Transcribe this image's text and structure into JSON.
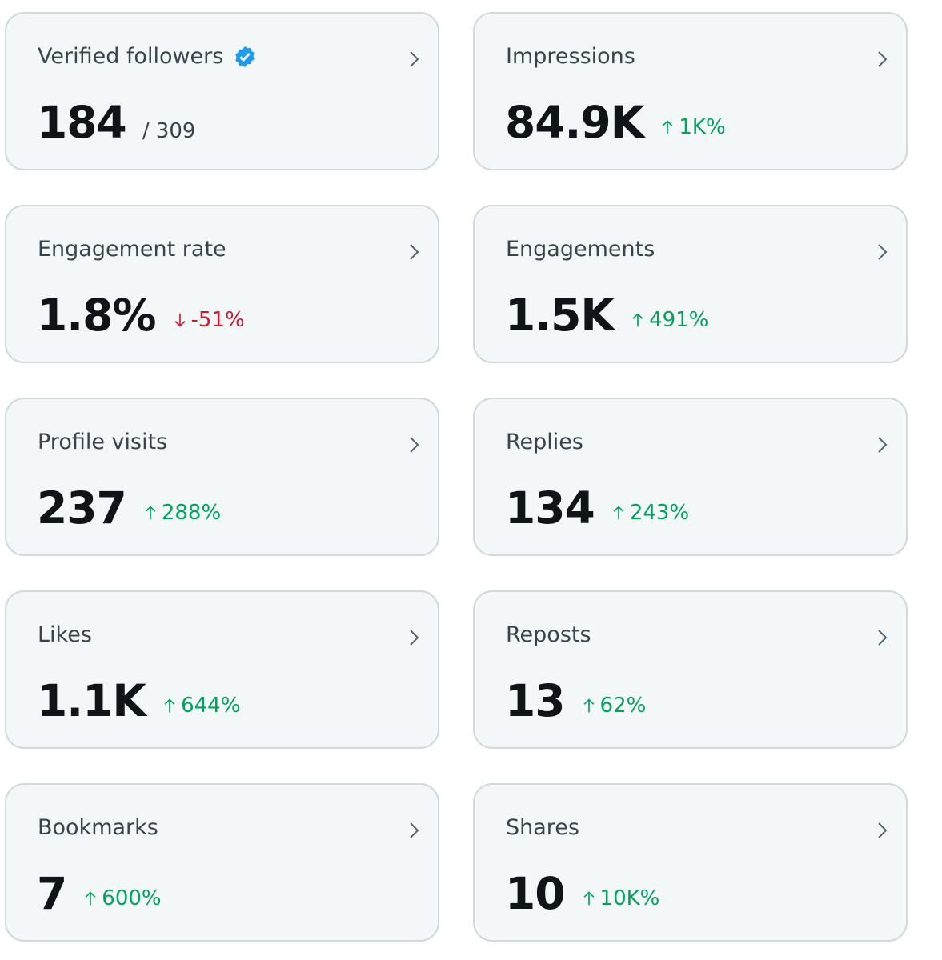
{
  "cards": [
    {
      "title": "Verified followers",
      "verified": true,
      "value": "184",
      "total": "/ 309"
    },
    {
      "title": "Impressions",
      "value": "84.9K",
      "change": "1K%",
      "trend": "up"
    },
    {
      "title": "Engagement rate",
      "value": "1.8%",
      "change": "-51%",
      "trend": "down"
    },
    {
      "title": "Engagements",
      "value": "1.5K",
      "change": "491%",
      "trend": "up"
    },
    {
      "title": "Profile visits",
      "value": "237",
      "change": "288%",
      "trend": "up"
    },
    {
      "title": "Replies",
      "value": "134",
      "change": "243%",
      "trend": "up"
    },
    {
      "title": "Likes",
      "value": "1.1K",
      "change": "644%",
      "trend": "up"
    },
    {
      "title": "Reposts",
      "value": "13",
      "change": "62%",
      "trend": "up"
    },
    {
      "title": "Bookmarks",
      "value": "7",
      "change": "600%",
      "trend": "up"
    },
    {
      "title": "Shares",
      "value": "10",
      "change": "10K%",
      "trend": "up"
    }
  ]
}
